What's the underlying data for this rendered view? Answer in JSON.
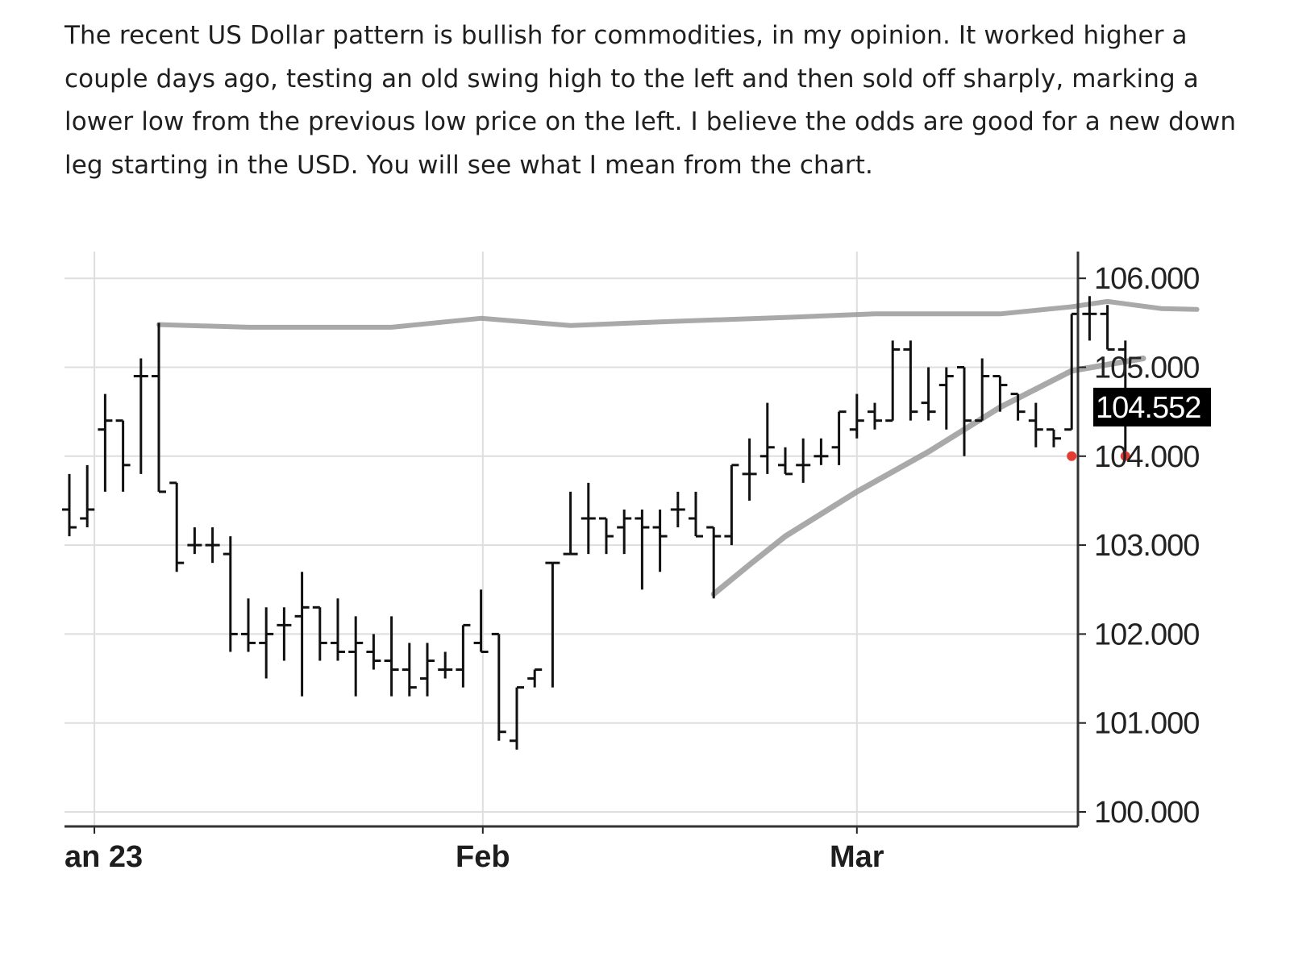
{
  "article": {
    "paragraph": "The recent US Dollar pattern is bullish for commodities, in my opinion. It worked higher a couple days ago, testing an old swing high to the left and then sold off sharply, marking a lower low from the previous low price on the left. I believe the odds are good for a new down leg starting in the USD. You will see what I mean from the chart."
  },
  "chart_data": {
    "type": "ohlc-bar",
    "instrument": "US Dollar Index",
    "title": "",
    "xlabel": "",
    "ylabel": "",
    "ylim": [
      99.8,
      106.3
    ],
    "y_ticks": [
      {
        "value": 106,
        "label": "106.000"
      },
      {
        "value": 105,
        "label": "105.000"
      },
      {
        "value": 104,
        "label": "104.000"
      },
      {
        "value": 103,
        "label": "103.000"
      },
      {
        "value": 102,
        "label": "102.000"
      },
      {
        "value": 101,
        "label": "101.000"
      },
      {
        "value": 100,
        "label": "100.000"
      }
    ],
    "x_ticks": [
      {
        "index": 1.4,
        "label": "an 23"
      },
      {
        "index": 23.1,
        "label": "Feb"
      },
      {
        "index": 44.0,
        "label": "Mar"
      }
    ],
    "last_price": {
      "value": 104.552,
      "label": "104.552"
    },
    "bars": [
      {
        "o": 103.4,
        "h": 103.8,
        "l": 103.1,
        "c": 103.2
      },
      {
        "o": 103.3,
        "h": 103.9,
        "l": 103.2,
        "c": 103.4
      },
      {
        "o": 104.3,
        "h": 104.7,
        "l": 103.6,
        "c": 104.4
      },
      {
        "o": 104.4,
        "h": 104.4,
        "l": 103.6,
        "c": 103.9
      },
      {
        "o": 104.9,
        "h": 105.1,
        "l": 103.8,
        "c": 104.9
      },
      {
        "o": 104.9,
        "h": 105.5,
        "l": 103.6,
        "c": 103.6
      },
      {
        "o": 103.7,
        "h": 103.7,
        "l": 102.7,
        "c": 102.8
      },
      {
        "o": 103.0,
        "h": 103.2,
        "l": 102.9,
        "c": 103.0
      },
      {
        "o": 103.0,
        "h": 103.2,
        "l": 102.8,
        "c": 103.0
      },
      {
        "o": 102.9,
        "h": 103.1,
        "l": 101.8,
        "c": 102.0
      },
      {
        "o": 102.0,
        "h": 102.4,
        "l": 101.8,
        "c": 101.9
      },
      {
        "o": 101.9,
        "h": 102.3,
        "l": 101.5,
        "c": 102.0
      },
      {
        "o": 102.1,
        "h": 102.3,
        "l": 101.7,
        "c": 102.1
      },
      {
        "o": 102.2,
        "h": 102.7,
        "l": 101.3,
        "c": 102.3
      },
      {
        "o": 102.3,
        "h": 102.3,
        "l": 101.7,
        "c": 101.9
      },
      {
        "o": 101.9,
        "h": 102.4,
        "l": 101.7,
        "c": 101.8
      },
      {
        "o": 101.8,
        "h": 102.2,
        "l": 101.3,
        "c": 101.9
      },
      {
        "o": 101.8,
        "h": 102.0,
        "l": 101.6,
        "c": 101.7
      },
      {
        "o": 101.7,
        "h": 102.2,
        "l": 101.3,
        "c": 101.6
      },
      {
        "o": 101.6,
        "h": 101.9,
        "l": 101.3,
        "c": 101.4
      },
      {
        "o": 101.5,
        "h": 101.9,
        "l": 101.3,
        "c": 101.7
      },
      {
        "o": 101.6,
        "h": 101.8,
        "l": 101.5,
        "c": 101.6
      },
      {
        "o": 101.6,
        "h": 102.1,
        "l": 101.4,
        "c": 102.1
      },
      {
        "o": 101.9,
        "h": 102.5,
        "l": 101.8,
        "c": 101.8
      },
      {
        "o": 102.0,
        "h": 102.0,
        "l": 100.8,
        "c": 100.9
      },
      {
        "o": 100.8,
        "h": 101.4,
        "l": 100.7,
        "c": 101.4
      },
      {
        "o": 101.5,
        "h": 101.6,
        "l": 101.4,
        "c": 101.6
      },
      {
        "o": 102.8,
        "h": 102.8,
        "l": 101.4,
        "c": 102.8
      },
      {
        "o": 102.9,
        "h": 103.6,
        "l": 102.9,
        "c": 102.9
      },
      {
        "o": 103.3,
        "h": 103.7,
        "l": 102.9,
        "c": 103.3
      },
      {
        "o": 103.3,
        "h": 103.3,
        "l": 102.9,
        "c": 103.1
      },
      {
        "o": 103.2,
        "h": 103.4,
        "l": 102.9,
        "c": 103.3
      },
      {
        "o": 103.3,
        "h": 103.4,
        "l": 102.5,
        "c": 103.2
      },
      {
        "o": 103.2,
        "h": 103.4,
        "l": 102.7,
        "c": 103.1
      },
      {
        "o": 103.4,
        "h": 103.6,
        "l": 103.2,
        "c": 103.4
      },
      {
        "o": 103.3,
        "h": 103.6,
        "l": 103.1,
        "c": 103.1
      },
      {
        "o": 103.2,
        "h": 103.2,
        "l": 102.4,
        "c": 103.1
      },
      {
        "o": 103.1,
        "h": 103.9,
        "l": 103.0,
        "c": 103.9
      },
      {
        "o": 103.8,
        "h": 104.2,
        "l": 103.5,
        "c": 103.8
      },
      {
        "o": 104.0,
        "h": 104.6,
        "l": 103.8,
        "c": 104.1
      },
      {
        "o": 103.9,
        "h": 104.1,
        "l": 103.8,
        "c": 103.8
      },
      {
        "o": 103.9,
        "h": 104.2,
        "l": 103.7,
        "c": 103.9
      },
      {
        "o": 104.0,
        "h": 104.2,
        "l": 103.9,
        "c": 104.0
      },
      {
        "o": 104.1,
        "h": 104.5,
        "l": 103.9,
        "c": 104.5
      },
      {
        "o": 104.3,
        "h": 104.7,
        "l": 104.2,
        "c": 104.4
      },
      {
        "o": 104.5,
        "h": 104.6,
        "l": 104.3,
        "c": 104.4
      },
      {
        "o": 104.4,
        "h": 105.3,
        "l": 104.4,
        "c": 105.2
      },
      {
        "o": 105.2,
        "h": 105.3,
        "l": 104.4,
        "c": 104.5
      },
      {
        "o": 104.6,
        "h": 105.0,
        "l": 104.4,
        "c": 104.5
      },
      {
        "o": 104.8,
        "h": 105.0,
        "l": 104.3,
        "c": 104.9
      },
      {
        "o": 105.0,
        "h": 105.0,
        "l": 104.0,
        "c": 104.4
      },
      {
        "o": 104.4,
        "h": 105.1,
        "l": 104.4,
        "c": 104.9
      },
      {
        "o": 104.9,
        "h": 104.9,
        "l": 104.5,
        "c": 104.8
      },
      {
        "o": 104.7,
        "h": 104.7,
        "l": 104.4,
        "c": 104.5
      },
      {
        "o": 104.4,
        "h": 104.6,
        "l": 104.1,
        "c": 104.3
      },
      {
        "o": 104.3,
        "h": 104.3,
        "l": 104.1,
        "c": 104.2
      },
      {
        "o": 104.3,
        "h": 105.6,
        "l": 104.3,
        "c": 105.6
      },
      {
        "o": 105.6,
        "h": 105.8,
        "l": 105.3,
        "c": 105.6
      },
      {
        "o": 105.6,
        "h": 105.7,
        "l": 105.2,
        "c": 105.2
      },
      {
        "o": 105.2,
        "h": 105.3,
        "l": 104.0,
        "c": 104.55
      }
    ],
    "resistance_line": [
      {
        "i": 5,
        "v": 105.48
      },
      {
        "i": 10,
        "v": 105.45
      },
      {
        "i": 18,
        "v": 105.45
      },
      {
        "i": 23,
        "v": 105.55
      },
      {
        "i": 28,
        "v": 105.47
      },
      {
        "i": 33,
        "v": 105.51
      },
      {
        "i": 40,
        "v": 105.56
      },
      {
        "i": 45,
        "v": 105.6
      },
      {
        "i": 52,
        "v": 105.6
      },
      {
        "i": 56,
        "v": 105.68
      },
      {
        "i": 58,
        "v": 105.74
      },
      {
        "i": 61,
        "v": 105.66
      },
      {
        "i": 63,
        "v": 105.65
      }
    ],
    "support_line": [
      {
        "i": 36,
        "v": 102.45
      },
      {
        "i": 38,
        "v": 102.78
      },
      {
        "i": 40,
        "v": 103.1
      },
      {
        "i": 44,
        "v": 103.6
      },
      {
        "i": 48,
        "v": 104.05
      },
      {
        "i": 52,
        "v": 104.55
      },
      {
        "i": 56,
        "v": 104.96
      },
      {
        "i": 60,
        "v": 105.1
      }
    ],
    "markers": [
      {
        "i": 56,
        "v": 104.0
      },
      {
        "i": 59,
        "v": 104.0
      }
    ],
    "colors": {
      "bars": "#111111",
      "grid": "#dedede",
      "trend_lines": "#9a9a9a",
      "markers": "#e23b2f",
      "last_price_bg": "#000000",
      "last_price_text": "#ffffff"
    }
  }
}
